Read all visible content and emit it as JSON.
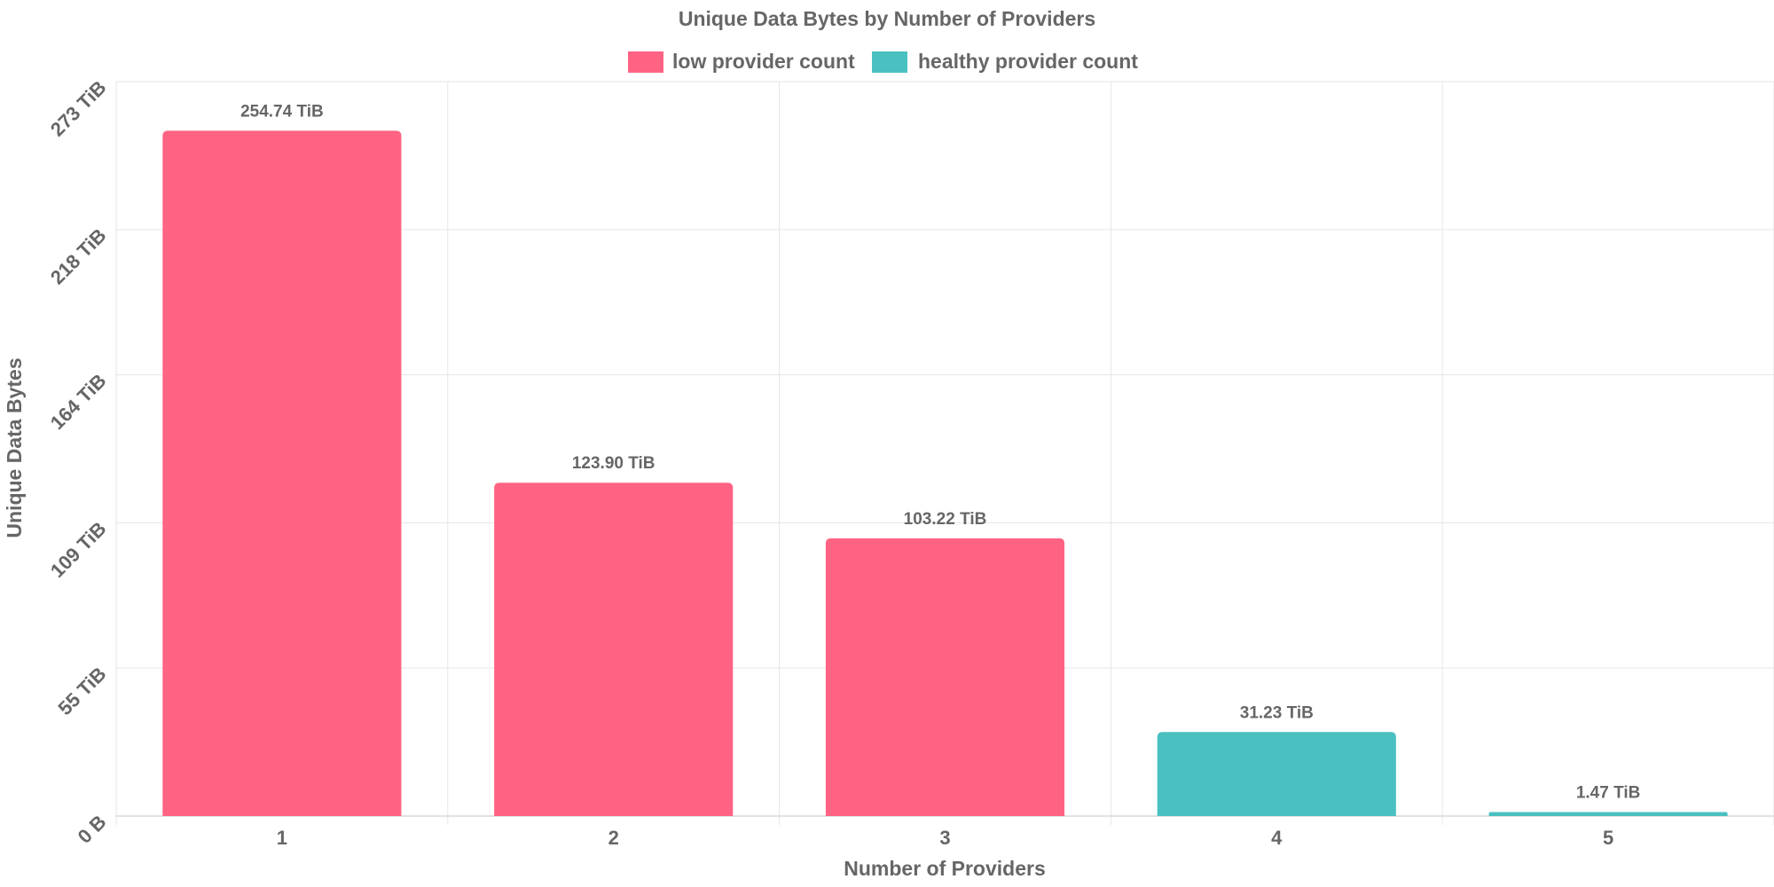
{
  "chart_data": {
    "type": "bar",
    "title": "Unique Data Bytes by Number of Providers",
    "xlabel": "Number of Providers",
    "ylabel": "Unique Data Bytes",
    "categories": [
      "1",
      "2",
      "3",
      "4",
      "5"
    ],
    "values": [
      254.74,
      123.9,
      103.22,
      31.23,
      1.47
    ],
    "value_unit": "TiB",
    "data_labels": [
      "254.74 TiB",
      "123.90 TiB",
      "103.22 TiB",
      "31.23 TiB",
      "1.47 TiB"
    ],
    "bar_series": [
      "low provider count",
      "low provider count",
      "low provider count",
      "healthy provider count",
      "healthy provider count"
    ],
    "ylim": [
      0,
      273
    ],
    "y_ticks": [
      0,
      55,
      109,
      164,
      218,
      273
    ],
    "y_tick_labels": [
      "0 B",
      "55 TiB",
      "109 TiB",
      "164 TiB",
      "218 TiB",
      "273 TiB"
    ],
    "grid": true,
    "legend_position": "top-center",
    "series": [
      {
        "name": "low provider count",
        "color": "#ff6384"
      },
      {
        "name": "healthy provider count",
        "color": "#4bc0c0"
      }
    ]
  }
}
